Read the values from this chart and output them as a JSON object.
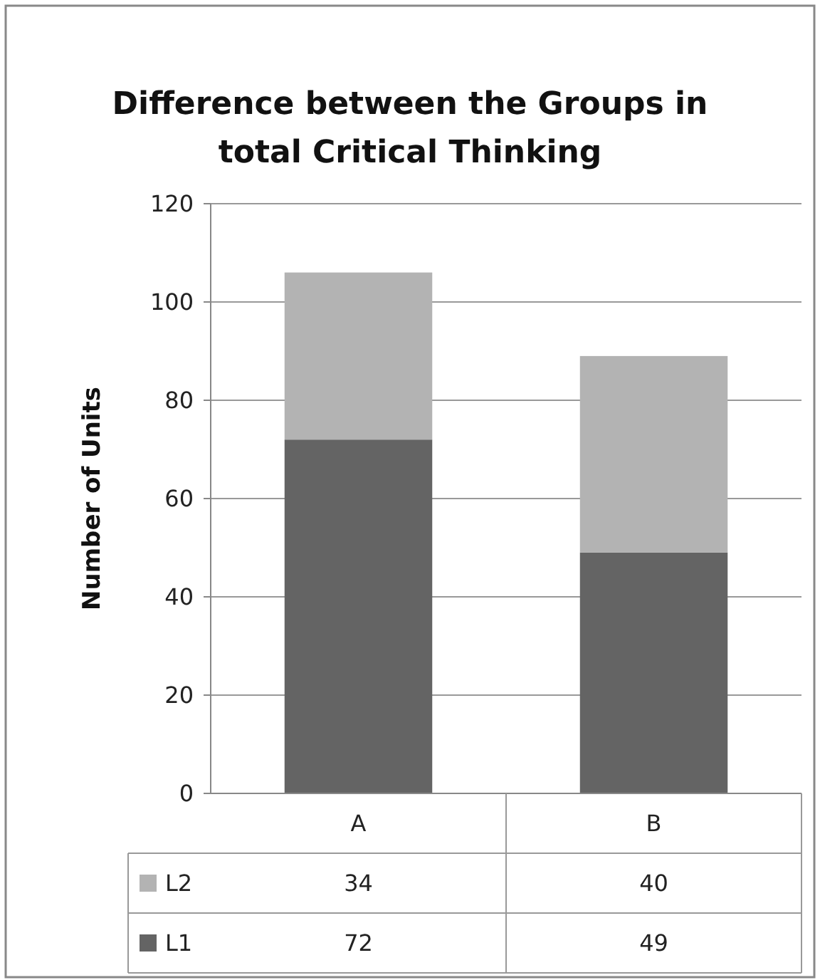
{
  "chart_data": {
    "type": "bar",
    "title": "Difference between the Groups in total Critical Thinking",
    "ylabel": "Number of Units",
    "categories": [
      "A",
      "B"
    ],
    "stacked": true,
    "series": [
      {
        "name": "L1",
        "color": "#646464",
        "values": [
          72,
          49
        ]
      },
      {
        "name": "L2",
        "color": "#b3b3b3",
        "values": [
          34,
          40
        ]
      }
    ],
    "ylim": [
      0,
      120
    ],
    "yticks": [
      0,
      20,
      40,
      60,
      80,
      100,
      120
    ],
    "grid": "y",
    "legend": "bottom",
    "data_labels": true
  }
}
